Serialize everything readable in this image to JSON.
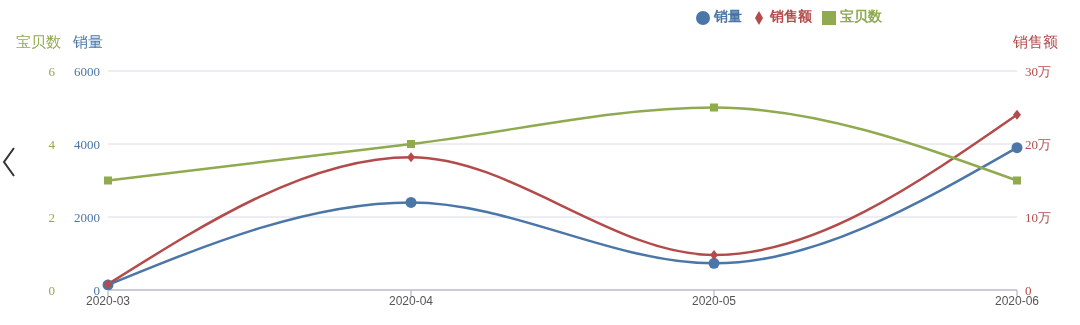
{
  "chart_data": {
    "type": "line",
    "categories": [
      "2020-03",
      "2020-04",
      "2020-05",
      "2020-06"
    ],
    "ylabel": "销量",
    "y2label": "销售额",
    "y3label": "宝贝数",
    "ylim": [
      0,
      6000
    ],
    "yticks": [
      0,
      2000,
      4000,
      6000
    ],
    "y2lim": [
      0,
      30
    ],
    "y2ticks": [
      0,
      {
        "value": 10,
        "label": "10万"
      },
      {
        "value": 20,
        "label": "20万"
      },
      {
        "value": 30,
        "label": "30万"
      }
    ],
    "y3lim": [
      0,
      6
    ],
    "y3ticks": [
      0,
      2,
      4,
      6
    ],
    "series": [
      {
        "name": "销量",
        "color": "#4a76a8",
        "marker": "circle",
        "values": [
          140,
          2400,
          730,
          3900
        ]
      },
      {
        "name": "销售额",
        "color": "#b44b4b",
        "marker": "diamond",
        "axis": "y2",
        "values": [
          0.8,
          18.2,
          4.8,
          24
        ]
      },
      {
        "name": "宝贝数",
        "color": "#8faa4f",
        "marker": "square",
        "axis": "y3",
        "values": [
          3,
          4,
          5,
          3
        ]
      }
    ],
    "grid": "y",
    "legend": "top right"
  }
}
